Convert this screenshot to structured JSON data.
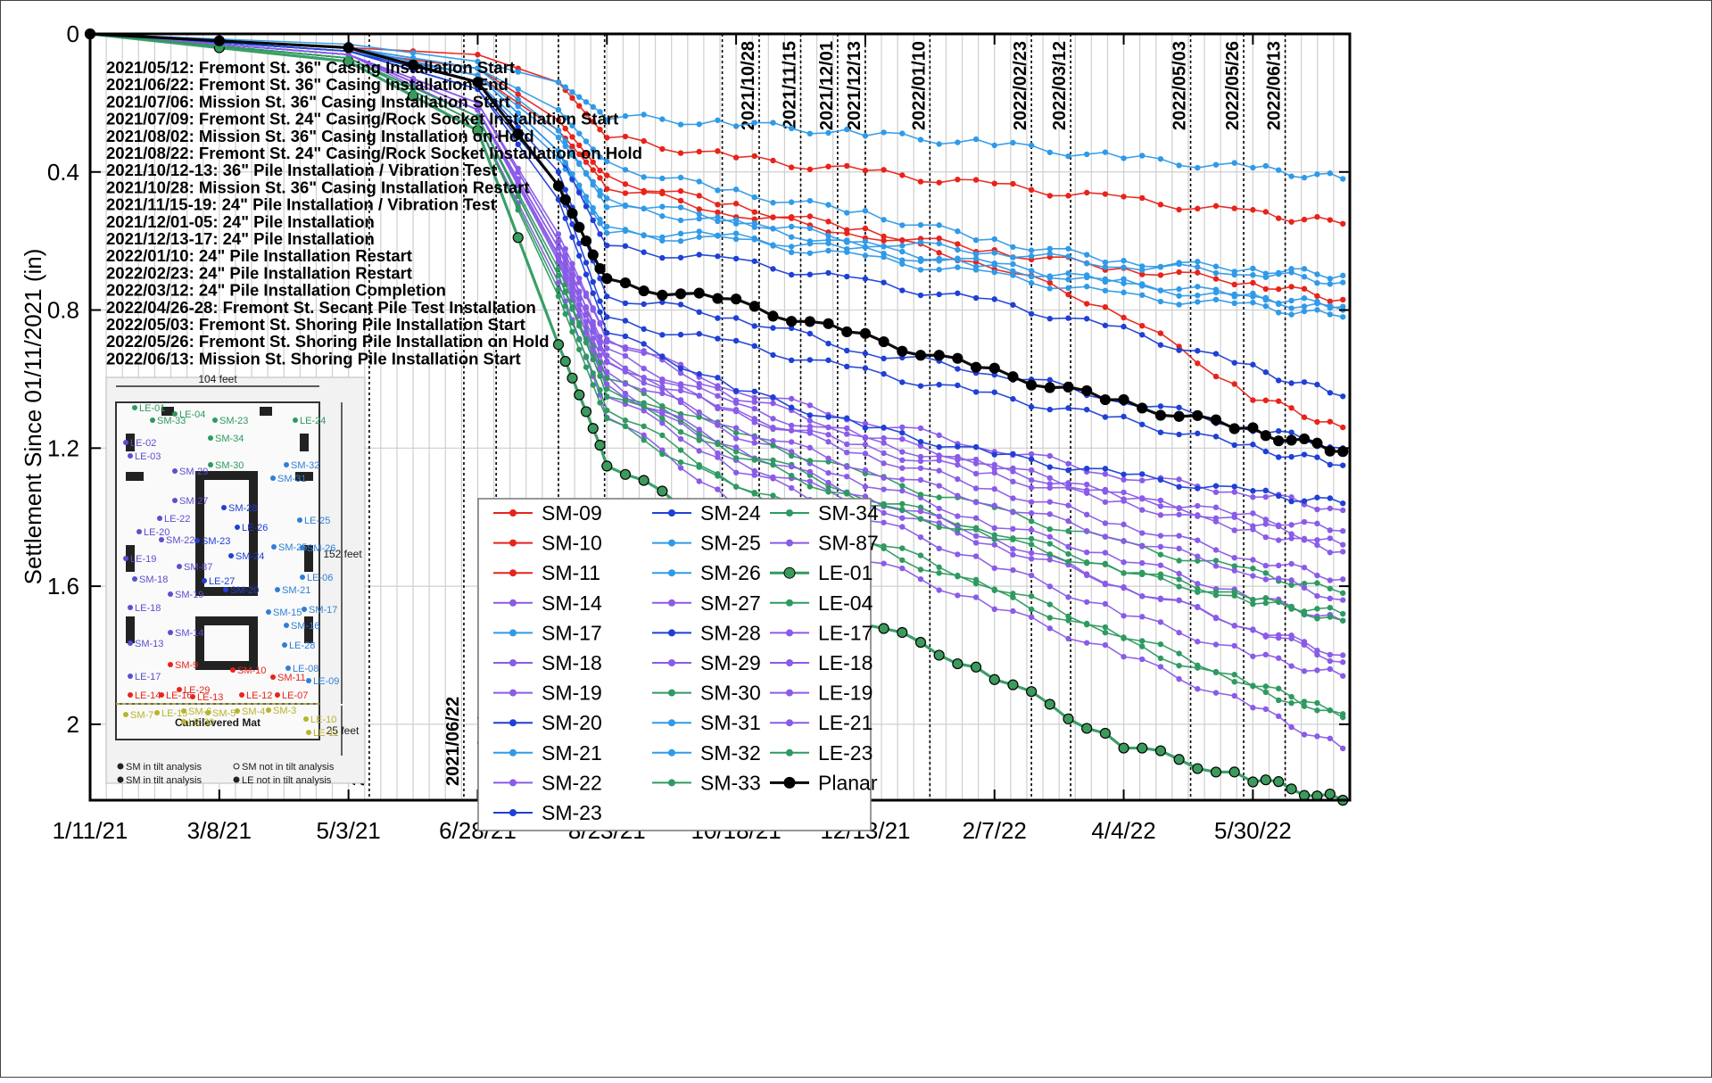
{
  "chart_data": {
    "type": "line",
    "ylabel": "Settlement Since 01/11/2021 (in)",
    "xlabel": "",
    "y_inverted": true,
    "ylim": [
      0,
      2.22
    ],
    "y_ticks": [
      "0",
      "0.4",
      "0.8",
      "1.2",
      "1.6",
      "2"
    ],
    "y_tick_values": [
      0,
      0.4,
      0.8,
      1.2,
      1.6,
      2
    ],
    "xlim": [
      "2021-01-11",
      "2022-07-11"
    ],
    "x_ticks": [
      "1/11/21",
      "3/8/21",
      "5/3/21",
      "6/28/21",
      "8/23/21",
      "10/18/21",
      "12/13/21",
      "2/7/22",
      "4/4/22",
      "5/30/22"
    ],
    "x_tick_dates": [
      "2021-01-11",
      "2021-03-08",
      "2021-05-03",
      "2021-06-28",
      "2021-08-23",
      "2021-10-18",
      "2021-12-13",
      "2022-02-07",
      "2022-04-04",
      "2022-05-30"
    ],
    "grid": true,
    "legend_position": "center",
    "event_lines": [
      {
        "date": "2021-05-12",
        "label": "2021/05/12"
      },
      {
        "date": "2021-06-22",
        "label": "2021/06/22"
      },
      {
        "date": "2021-07-06",
        "label": "2021/07/06"
      },
      {
        "date": "2021-08-02",
        "label": "2021/08/02"
      },
      {
        "date": "2021-08-22",
        "label": "2021/08/22"
      },
      {
        "date": "2021-10-12",
        "label": "2021/10/12"
      },
      {
        "date": "2021-10-28",
        "label": "2021/10/28"
      },
      {
        "date": "2021-11-15",
        "label": "2021/11/15"
      },
      {
        "date": "2021-12-01",
        "label": "2021/12/01"
      },
      {
        "date": "2021-12-13",
        "label": "2021/12/13"
      },
      {
        "date": "2022-01-10",
        "label": "2022/01/10"
      },
      {
        "date": "2022-02-23",
        "label": "2022/02/23"
      },
      {
        "date": "2022-03-12",
        "label": "2022/03/12"
      },
      {
        "date": "2022-05-03",
        "label": "2022/05/03"
      },
      {
        "date": "2022-05-26",
        "label": "2022/05/26"
      },
      {
        "date": "2022-06-13",
        "label": "2022/06/13"
      }
    ],
    "annotations": [
      "2021/05/12: Fremont St. 36\" Casing Installation Start",
      "2021/06/22: Fremont St. 36\" Casing Installation End",
      "2021/07/06: Mission St.  36\" Casing Installation Start",
      "2021/07/09: Fremont St. 24\" Casing/Rock Socket Installation Start",
      "2021/08/02: Mission St.  36\" Casing Installation on Hold",
      "2021/08/22: Fremont St. 24\" Casing/Rock Socket Installation on Hold",
      "2021/10/12-13: 36\" Pile Installation / Vibration Test",
      "2021/10/28: Mission St.  36\" Casing Installation Restart",
      "2021/11/15-19: 24\" Pile Installation / Vibration Test",
      "2021/12/01-05: 24\" Pile Installation",
      "2021/12/13-17: 24\" Pile Installation",
      "2022/01/10: 24\" Pile Installation Restart",
      "2022/02/23: 24\" Pile Installation Restart",
      "2022/03/12: 24\" Pile Installation Completion",
      "2022/04/26-28: Fremont St. Secant Pile Test Installation",
      "2022/05/03: Fremont St. Shoring Pile Installation Start",
      "2022/05/26: Fremont St. Shoring Pile Installation on Hold",
      "2022/06/13: Mission St. Shoring Pile Installation Start"
    ],
    "x_points": [
      "2021-01-11",
      "2021-05-03",
      "2021-06-28",
      "2021-08-02",
      "2021-08-23",
      "2021-10-18",
      "2021-12-13",
      "2022-02-07",
      "2022-04-04",
      "2022-05-30",
      "2022-07-08"
    ],
    "series": [
      {
        "name": "SM-09",
        "color": "#e8231a",
        "values": [
          0,
          0.05,
          0.12,
          0.28,
          0.44,
          0.52,
          0.58,
          0.67,
          0.81,
          1.05,
          1.14
        ]
      },
      {
        "name": "SM-10",
        "color": "#e8231a",
        "values": [
          0,
          0.04,
          0.06,
          0.14,
          0.3,
          0.36,
          0.4,
          0.44,
          0.48,
          0.52,
          0.55
        ]
      },
      {
        "name": "SM-11",
        "color": "#e8231a",
        "values": [
          0,
          0.05,
          0.1,
          0.25,
          0.42,
          0.5,
          0.57,
          0.63,
          0.68,
          0.72,
          0.77
        ]
      },
      {
        "name": "SM-14",
        "color": "#8a5be8",
        "values": [
          0,
          0.06,
          0.2,
          0.6,
          0.94,
          1.16,
          1.3,
          1.42,
          1.52,
          1.63,
          1.7
        ]
      },
      {
        "name": "SM-17",
        "color": "#2f9ae8",
        "values": [
          0,
          0.05,
          0.14,
          0.36,
          0.58,
          0.6,
          0.65,
          0.7,
          0.76,
          0.79,
          0.82
        ]
      },
      {
        "name": "SM-18",
        "color": "#8a5be8",
        "values": [
          0,
          0.06,
          0.22,
          0.65,
          1.0,
          1.24,
          1.36,
          1.48,
          1.6,
          1.72,
          1.82
        ]
      },
      {
        "name": "SM-19",
        "color": "#8a5be8",
        "values": [
          0,
          0.06,
          0.2,
          0.6,
          0.88,
          1.05,
          1.16,
          1.25,
          1.34,
          1.42,
          1.48
        ]
      },
      {
        "name": "SM-20",
        "color": "#1f3fd6",
        "values": [
          0,
          0.04,
          0.12,
          0.34,
          0.62,
          0.66,
          0.72,
          0.78,
          0.86,
          0.97,
          1.05
        ]
      },
      {
        "name": "SM-21",
        "color": "#2f9ae8",
        "values": [
          0,
          0.04,
          0.12,
          0.3,
          0.48,
          0.54,
          0.6,
          0.63,
          0.67,
          0.69,
          0.72
        ]
      },
      {
        "name": "SM-22",
        "color": "#8a5be8",
        "values": [
          0,
          0.07,
          0.26,
          0.72,
          1.1,
          1.36,
          1.52,
          1.66,
          1.8,
          1.95,
          2.07
        ]
      },
      {
        "name": "SM-23",
        "color": "#1f3fd6",
        "values": [
          0,
          0.05,
          0.16,
          0.44,
          0.83,
          0.9,
          0.98,
          1.05,
          1.12,
          1.2,
          1.25
        ]
      },
      {
        "name": "SM-24",
        "color": "#1f3fd6",
        "values": [
          0,
          0.05,
          0.14,
          0.4,
          0.76,
          0.82,
          0.92,
          0.98,
          1.06,
          1.14,
          1.2
        ]
      },
      {
        "name": "SM-25",
        "color": "#2f9ae8",
        "values": [
          0,
          0.03,
          0.08,
          0.14,
          0.24,
          0.26,
          0.29,
          0.32,
          0.36,
          0.39,
          0.42
        ]
      },
      {
        "name": "SM-26",
        "color": "#2f9ae8",
        "values": [
          0,
          0.05,
          0.12,
          0.34,
          0.57,
          0.59,
          0.63,
          0.68,
          0.72,
          0.76,
          0.79
        ]
      },
      {
        "name": "SM-27",
        "color": "#8a5be8",
        "values": [
          0,
          0.06,
          0.2,
          0.58,
          0.88,
          1.03,
          1.12,
          1.2,
          1.28,
          1.33,
          1.38
        ]
      },
      {
        "name": "SM-28",
        "color": "#1f3fd6",
        "values": [
          0,
          0.05,
          0.16,
          0.48,
          0.86,
          1.03,
          1.14,
          1.22,
          1.28,
          1.33,
          1.36
        ]
      },
      {
        "name": "SM-29",
        "color": "#8a5be8",
        "values": [
          0,
          0.06,
          0.22,
          0.62,
          0.96,
          1.1,
          1.2,
          1.28,
          1.36,
          1.44,
          1.5
        ]
      },
      {
        "name": "SM-30",
        "color": "#2e9a60",
        "values": [
          0,
          0.07,
          0.24,
          0.7,
          1.02,
          1.2,
          1.34,
          1.44,
          1.55,
          1.64,
          1.7
        ]
      },
      {
        "name": "SM-31",
        "color": "#2f9ae8",
        "values": [
          0,
          0.04,
          0.1,
          0.28,
          0.5,
          0.55,
          0.62,
          0.67,
          0.73,
          0.77,
          0.8
        ]
      },
      {
        "name": "SM-32",
        "color": "#2f9ae8",
        "values": [
          0,
          0.04,
          0.1,
          0.22,
          0.38,
          0.46,
          0.52,
          0.6,
          0.66,
          0.68,
          0.7
        ]
      },
      {
        "name": "SM-33",
        "color": "#2e9a60",
        "values": [
          0,
          0.07,
          0.26,
          0.74,
          1.08,
          1.3,
          1.46,
          1.6,
          1.74,
          1.88,
          1.98
        ]
      },
      {
        "name": "SM-34",
        "color": "#2e9a60",
        "values": [
          0,
          0.07,
          0.24,
          0.68,
          1.0,
          1.16,
          1.28,
          1.38,
          1.48,
          1.56,
          1.62
        ]
      },
      {
        "name": "SM-87",
        "color": "#8a5be8",
        "values": [
          0,
          0.06,
          0.22,
          0.64,
          0.94,
          1.1,
          1.22,
          1.32,
          1.42,
          1.52,
          1.58
        ]
      },
      {
        "name": "LE-01",
        "color": "#2e9a60",
        "values": [
          0,
          0.08,
          0.28,
          0.9,
          1.24,
          1.46,
          1.7,
          1.86,
          2.06,
          2.16,
          2.22
        ]
      },
      {
        "name": "LE-04",
        "color": "#2e9a60",
        "values": [
          0,
          0.07,
          0.26,
          0.76,
          1.12,
          1.32,
          1.48,
          1.62,
          1.76,
          1.9,
          1.97
        ]
      },
      {
        "name": "LE-17",
        "color": "#8a5be8",
        "values": [
          0,
          0.06,
          0.22,
          0.66,
          1.02,
          1.2,
          1.34,
          1.46,
          1.6,
          1.72,
          1.8
        ]
      },
      {
        "name": "LE-18",
        "color": "#8a5be8",
        "values": [
          0,
          0.06,
          0.24,
          0.7,
          1.04,
          1.26,
          1.4,
          1.54,
          1.68,
          1.8,
          1.86
        ]
      },
      {
        "name": "LE-19",
        "color": "#8a5be8",
        "values": [
          0,
          0.06,
          0.22,
          0.62,
          0.92,
          1.08,
          1.18,
          1.26,
          1.34,
          1.4,
          1.44
        ]
      },
      {
        "name": "LE-21",
        "color": "#8a5be8",
        "values": [
          0,
          0.06,
          0.22,
          0.64,
          0.98,
          1.14,
          1.26,
          1.36,
          1.46,
          1.56,
          1.64
        ]
      },
      {
        "name": "LE-23",
        "color": "#2e9a60",
        "values": [
          0,
          0.07,
          0.24,
          0.7,
          1.04,
          1.22,
          1.36,
          1.46,
          1.56,
          1.64,
          1.68
        ]
      },
      {
        "name": "Planar",
        "color": "#000000",
        "values": [
          0,
          0.04,
          0.14,
          0.44,
          0.72,
          0.78,
          0.88,
          0.98,
          1.07,
          1.15,
          1.21
        ]
      }
    ],
    "legend": [
      [
        "SM-09",
        "SM-24",
        "SM-34"
      ],
      [
        "SM-10",
        "SM-25",
        "SM-87"
      ],
      [
        "SM-11",
        "SM-26",
        "LE-01"
      ],
      [
        "SM-14",
        "SM-27",
        "LE-04"
      ],
      [
        "SM-17",
        "SM-28",
        "LE-17"
      ],
      [
        "SM-18",
        "SM-29",
        "LE-18"
      ],
      [
        "SM-19",
        "SM-30",
        "LE-19"
      ],
      [
        "SM-20",
        "SM-31",
        "LE-21"
      ],
      [
        "SM-21",
        "SM-32",
        "LE-23"
      ],
      [
        "SM-22",
        "SM-33",
        "Planar"
      ],
      [
        "SM-23",
        "",
        ""
      ]
    ]
  },
  "inset_map": {
    "width_label": "104 feet",
    "height_label": "152 feet",
    "mat_height_label": "25 feet",
    "mat_label": "Cantilevered Mat",
    "legend": [
      "SM in tilt analysis",
      "SM not in tilt analysis",
      "SM in tilt analysis",
      "LE not in tilt analysis"
    ],
    "points": [
      {
        "label": "LE-01",
        "color": "#2e9a60"
      },
      {
        "label": "LE-04",
        "color": "#2e9a60"
      },
      {
        "label": "SM-33",
        "color": "#2e9a60"
      },
      {
        "label": "SM-23",
        "color": "#2e9a60"
      },
      {
        "label": "LE-24",
        "color": "#2e9a60"
      },
      {
        "label": "SM-34",
        "color": "#2e9a60"
      },
      {
        "label": "LE-02",
        "color": "#5a4fcf"
      },
      {
        "label": "LE-03",
        "color": "#5a4fcf"
      },
      {
        "label": "SM-30",
        "color": "#2e9a60"
      },
      {
        "label": "SM-29",
        "color": "#5a4fcf"
      },
      {
        "label": "SM-32",
        "color": "#2f7fd6"
      },
      {
        "label": "SM-31",
        "color": "#2f7fd6"
      },
      {
        "label": "SM-27",
        "color": "#5a4fcf"
      },
      {
        "label": "LE-22",
        "color": "#5a4fcf"
      },
      {
        "label": "SM-28",
        "color": "#1f3fd6"
      },
      {
        "label": "LE-20",
        "color": "#5a4fcf"
      },
      {
        "label": "SM-22",
        "color": "#5a4fcf"
      },
      {
        "label": "LE-25",
        "color": "#2f7fd6"
      },
      {
        "label": "SM-23",
        "color": "#1f3fd6"
      },
      {
        "label": "LE-26",
        "color": "#1f3fd6"
      },
      {
        "label": "SM-24",
        "color": "#1f3fd6"
      },
      {
        "label": "SM-25",
        "color": "#2f7fd6"
      },
      {
        "label": "SM-26",
        "color": "#2f7fd6"
      },
      {
        "label": "LE-19",
        "color": "#5a4fcf"
      },
      {
        "label": "SM-87",
        "color": "#5a4fcf"
      },
      {
        "label": "SM-18",
        "color": "#5a4fcf"
      },
      {
        "label": "LE-27",
        "color": "#1f3fd6"
      },
      {
        "label": "LE-06",
        "color": "#2f7fd6"
      },
      {
        "label": "SM-19",
        "color": "#5a4fcf"
      },
      {
        "label": "SM-20",
        "color": "#1f3fd6"
      },
      {
        "label": "SM-21",
        "color": "#2f7fd6"
      },
      {
        "label": "LE-18",
        "color": "#5a4fcf"
      },
      {
        "label": "SM-15",
        "color": "#2f7fd6"
      },
      {
        "label": "SM-17",
        "color": "#2f7fd6"
      },
      {
        "label": "SM-16",
        "color": "#2f7fd6"
      },
      {
        "label": "SM-14",
        "color": "#5a4fcf"
      },
      {
        "label": "LE-28",
        "color": "#2f7fd6"
      },
      {
        "label": "SM-13",
        "color": "#5a4fcf"
      },
      {
        "label": "LE-08",
        "color": "#2f7fd6"
      },
      {
        "label": "LE-17",
        "color": "#5a4fcf"
      },
      {
        "label": "SM-9",
        "color": "#e8231a"
      },
      {
        "label": "SM-10",
        "color": "#e8231a"
      },
      {
        "label": "SM-11",
        "color": "#e8231a"
      },
      {
        "label": "LE-09",
        "color": "#2f7fd6"
      },
      {
        "label": "LE-29",
        "color": "#e8231a"
      },
      {
        "label": "LE-14",
        "color": "#e8231a"
      },
      {
        "label": "LE-16",
        "color": "#e8231a"
      },
      {
        "label": "LE-13",
        "color": "#e8231a"
      },
      {
        "label": "LE-12",
        "color": "#e8231a"
      },
      {
        "label": "LE-07",
        "color": "#e8231a"
      },
      {
        "label": "SM-7",
        "color": "#b7b42a"
      },
      {
        "label": "LE-15",
        "color": "#b7b42a"
      },
      {
        "label": "SM-6",
        "color": "#b7b42a"
      },
      {
        "label": "SM-5",
        "color": "#b7b42a"
      },
      {
        "label": "SM-4",
        "color": "#b7b42a"
      },
      {
        "label": "SM-3",
        "color": "#b7b42a"
      },
      {
        "label": "LE-30",
        "color": "#b7b42a"
      },
      {
        "label": "LE-10",
        "color": "#b7b42a"
      },
      {
        "label": "LE-11",
        "color": "#b7b42a"
      }
    ]
  }
}
